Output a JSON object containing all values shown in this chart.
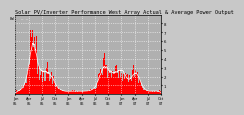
{
  "title": "Solar PV/Inverter Performance West Array Actual & Average Power Output",
  "legend_label": "kW   -----",
  "background_color": "#c8c8c8",
  "plot_bg_color": "#b0b0b0",
  "bar_color": "#ff0000",
  "grid_color": "#ffffff",
  "ylim": [
    0,
    9
  ],
  "ytick_labels": [
    "1",
    "2",
    "3",
    "4",
    "5",
    "6",
    "7",
    "8"
  ],
  "ytick_vals": [
    1,
    2,
    3,
    4,
    5,
    6,
    7,
    8
  ],
  "num_points": 520,
  "title_fontsize": 3.8,
  "tick_fontsize": 2.8,
  "legend_fontsize": 2.8
}
